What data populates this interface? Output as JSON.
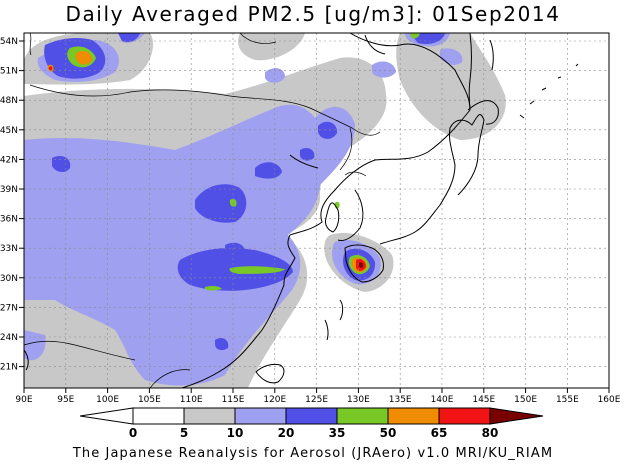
{
  "title": "Daily Averaged PM2.5 [ug/m3]: 01Sep2014",
  "footer": "The Japanese Reanalysis for Aerosol (JRAero) v1.0 MRI/KU_RIAM",
  "lon_ticks": [
    "90E",
    "95E",
    "100E",
    "105E",
    "110E",
    "115E",
    "120E",
    "125E",
    "130E",
    "135E",
    "140E",
    "145E",
    "150E",
    "155E",
    "160E"
  ],
  "lat_ticks": [
    "54N",
    "51N",
    "48N",
    "45N",
    "42N",
    "39N",
    "36N",
    "33N",
    "30N",
    "27N",
    "24N",
    "21N"
  ],
  "colorbar": {
    "levels": [
      "0",
      "5",
      "10",
      "20",
      "35",
      "50",
      "65",
      "80"
    ],
    "colors": [
      "#ffffff",
      "#c8c8c8",
      "#a0a0f0",
      "#5050e6",
      "#78c828",
      "#f08c00",
      "#f01414",
      "#780000"
    ]
  }
}
